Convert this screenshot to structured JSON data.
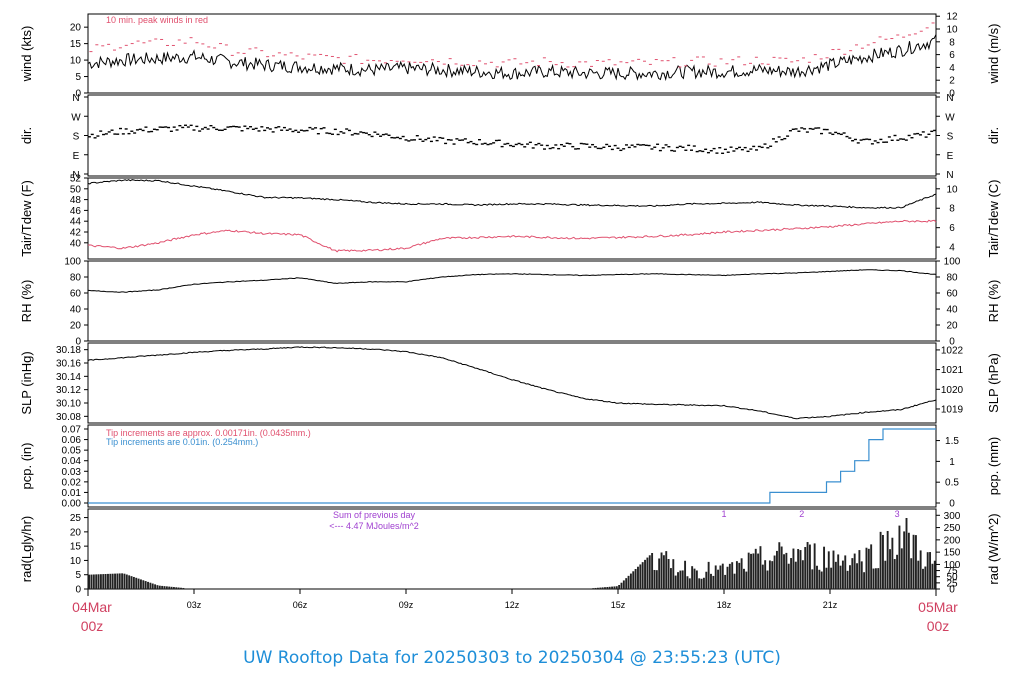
{
  "footer_title": "UW Rooftop Data for 20250303  to  20250304 @ 23:55:23  (UTC)",
  "colors": {
    "wind": "#000000",
    "peak": "#e0506e",
    "dew": "#e0506e",
    "tip1": "#e0506e",
    "tip2": "#3a8fd0",
    "rad_note": "#a040d0",
    "footer": "#1e8ed8",
    "edge_time": "#d04060"
  },
  "chart_data": [
    {
      "type": "line",
      "id": "wind",
      "ylabel": "wind (kts)",
      "ylabel_right": "wind (m/s)",
      "ylim": [
        0,
        24
      ],
      "yticks": [
        0,
        5,
        10,
        15,
        20
      ],
      "yticks_right": [
        0,
        2,
        4,
        6,
        8,
        10,
        12
      ],
      "annotation": "10 min. peak winds in red",
      "x": [
        0,
        1,
        2,
        3,
        4,
        5,
        6,
        7,
        8,
        9,
        10,
        11,
        12,
        13,
        14,
        15,
        16,
        17,
        18,
        19,
        20,
        21,
        22,
        23,
        24
      ],
      "series": [
        {
          "values": [
            9,
            10,
            10.5,
            11,
            9.5,
            8.5,
            8,
            7.5,
            7,
            7.5,
            7,
            6.5,
            6,
            6.5,
            6,
            6,
            6,
            6.5,
            6.5,
            7,
            6.5,
            8.5,
            11,
            13,
            16
          ]
        },
        {
          "values": [
            13,
            15,
            15,
            16,
            13,
            12,
            11,
            10.5,
            10,
            10.5,
            10,
            9.5,
            9,
            9.5,
            9,
            9,
            9,
            9.5,
            9.5,
            10,
            9.5,
            12,
            15,
            17,
            22
          ]
        }
      ]
    },
    {
      "type": "scatter",
      "id": "dir",
      "ylabel": "dir.",
      "ylabel_right": "dir.",
      "yticks": [
        "N",
        "E",
        "S",
        "W",
        "N"
      ],
      "x": [
        0,
        1,
        2,
        3,
        4,
        5,
        6,
        7,
        8,
        9,
        10,
        11,
        12,
        13,
        14,
        15,
        16,
        17,
        18,
        19,
        20,
        21,
        22,
        23,
        24
      ],
      "values": [
        180,
        200,
        210,
        215,
        215,
        210,
        205,
        200,
        190,
        170,
        155,
        150,
        140,
        130,
        130,
        125,
        125,
        120,
        110,
        115,
        205,
        200,
        150,
        170,
        190
      ]
    },
    {
      "type": "line",
      "id": "temp",
      "ylabel": "Tair/Tdew (F)",
      "ylabel_right": "Tair/Tdew (C)",
      "ylim": [
        37,
        52
      ],
      "yticks": [
        40,
        42,
        44,
        46,
        48,
        50,
        52
      ],
      "yticks_right": [
        4,
        6,
        8,
        10
      ],
      "x": [
        0,
        1,
        2,
        3,
        4,
        5,
        6,
        7,
        8,
        9,
        10,
        11,
        12,
        13,
        14,
        15,
        16,
        17,
        18,
        19,
        20,
        21,
        22,
        23,
        24
      ],
      "series": [
        {
          "values": [
            51,
            51.6,
            51.5,
            50.5,
            49.5,
            48.4,
            48.3,
            48,
            47.5,
            47.2,
            47.2,
            47,
            47.2,
            47.2,
            47,
            46.9,
            46.8,
            47.2,
            47.3,
            47.5,
            47,
            46.8,
            46.5,
            46.5,
            49
          ]
        },
        {
          "values": [
            39.5,
            39,
            40,
            41.5,
            42.3,
            41.7,
            41.5,
            38.5,
            38.6,
            39,
            40.8,
            41,
            41.2,
            41,
            40.8,
            41,
            41.2,
            41.5,
            42,
            42.3,
            42.6,
            43,
            43.5,
            44,
            44
          ]
        }
      ]
    },
    {
      "type": "line",
      "id": "rh",
      "ylabel": "RH (%)",
      "ylabel_right": "RH (%)",
      "ylim": [
        0,
        100
      ],
      "yticks": [
        0,
        20,
        40,
        60,
        80,
        100
      ],
      "x": [
        0,
        1,
        2,
        3,
        4,
        5,
        6,
        7,
        8,
        9,
        10,
        11,
        12,
        13,
        14,
        15,
        16,
        17,
        18,
        19,
        20,
        21,
        22,
        23,
        24
      ],
      "values": [
        63,
        61,
        64,
        71,
        74,
        76,
        79,
        72,
        74,
        74,
        80,
        83,
        84,
        83,
        82,
        83,
        84,
        83,
        82,
        84,
        85,
        87,
        89,
        88,
        83
      ]
    },
    {
      "type": "line",
      "id": "slp",
      "ylabel": "SLP (inHg)",
      "ylabel_right": "SLP (hPa)",
      "ylim": [
        30.07,
        30.19
      ],
      "yticks": [
        30.08,
        30.1,
        30.12,
        30.14,
        30.16,
        30.18
      ],
      "yticks_labels": [
        "30.08",
        "30.10",
        "30.12",
        "30.14",
        "30.16",
        "30.18"
      ],
      "yticks_right": [
        1019,
        1020,
        1021,
        1022
      ],
      "x": [
        0,
        1,
        2,
        3,
        4,
        5,
        6,
        7,
        8,
        9,
        10,
        11,
        12,
        13,
        14,
        15,
        16,
        17,
        18,
        19,
        20,
        21,
        22,
        23,
        24
      ],
      "values": [
        30.164,
        30.168,
        30.172,
        30.176,
        30.179,
        30.181,
        30.184,
        30.183,
        30.181,
        30.177,
        30.168,
        30.152,
        30.135,
        30.12,
        30.107,
        30.1,
        30.098,
        30.097,
        30.096,
        30.088,
        30.077,
        30.08,
        30.086,
        30.09,
        30.105
      ]
    },
    {
      "type": "line",
      "id": "pcp",
      "ylabel": "pcp. (in)",
      "ylabel_right": "pcp. (mm)",
      "ylim": [
        0,
        0.07
      ],
      "yticks": [
        0,
        0.01,
        0.02,
        0.03,
        0.04,
        0.05,
        0.06,
        0.07
      ],
      "yticks_labels": [
        "0.00",
        "0.01",
        "0.02",
        "0.03",
        "0.04",
        "0.05",
        "0.06",
        "0.07"
      ],
      "yticks_right": [
        0,
        0.5,
        1,
        1.5
      ],
      "notes": [
        "Tip increments are approx. 0.00171in. (0.0435mm.)",
        "Tip increments are 0.01in. (0.254mm.)"
      ],
      "x": [
        0,
        19.3,
        19.3,
        20.9,
        20.9,
        21.3,
        21.3,
        21.7,
        21.7,
        22.1,
        22.1,
        22.5,
        22.5,
        24
      ],
      "values": [
        0,
        0,
        0.01,
        0.01,
        0.02,
        0.02,
        0.03,
        0.03,
        0.04,
        0.04,
        0.06,
        0.06,
        0.07,
        0.07
      ]
    },
    {
      "type": "bar",
      "id": "rad",
      "ylabel": "rad(Lgly/hr)",
      "ylabel_right": "rad (W/m^2)",
      "ylim": [
        0,
        28
      ],
      "yticks": [
        0,
        5,
        10,
        15,
        20,
        25
      ],
      "yticks_right": [
        0,
        25,
        50,
        75,
        100,
        150,
        200,
        250,
        300
      ],
      "annotation_line1": "Sum of previous day",
      "annotation_line2": "<--- 4.47 MJoules/m^2",
      "markers": [
        "1",
        "2",
        "3"
      ],
      "marker_x": [
        18,
        20.2,
        22.9
      ],
      "x": [
        0,
        1,
        2,
        3,
        4,
        5,
        6,
        7,
        8,
        9,
        10,
        11,
        12,
        13,
        14,
        15,
        16,
        17,
        18,
        19,
        20,
        21,
        22,
        23,
        24
      ],
      "values": [
        5,
        5.5,
        1.2,
        0,
        0,
        0,
        0,
        0,
        0,
        0,
        0,
        0,
        0,
        0,
        0,
        1,
        13,
        9,
        8,
        13,
        16,
        14,
        14,
        25,
        10
      ]
    }
  ],
  "xaxis": {
    "ticks": [
      "03z",
      "06z",
      "09z",
      "12z",
      "15z",
      "18z",
      "21z"
    ],
    "tick_hours": [
      3,
      6,
      9,
      12,
      15,
      18,
      21
    ],
    "start_label_1": "04Mar",
    "start_label_2": "00z",
    "end_label_1": "05Mar",
    "end_label_2": "00z"
  }
}
